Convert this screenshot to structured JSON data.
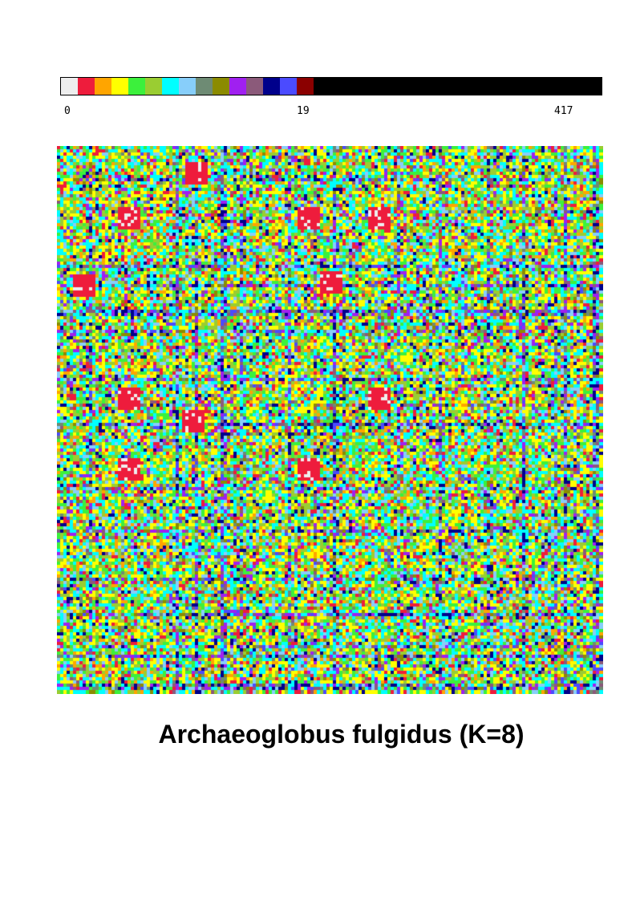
{
  "chart_data": {
    "type": "heatmap",
    "title": "Archaeoglobus fulgidus (K=8)",
    "colorbar": {
      "tick_labels": [
        "0",
        "19",
        "417"
      ],
      "range": [
        0,
        417
      ],
      "colors": [
        "#eeeeee",
        "#ee1c3c",
        "#ffa500",
        "#ffff00",
        "#3cf03c",
        "#9acd32",
        "#00ffff",
        "#87cefa",
        "#6e8b74",
        "#8b8b00",
        "#a020f0",
        "#8b5a7a",
        "#00008b",
        "#4b4bff",
        "#8b0000"
      ],
      "overflow_color": "#000000"
    },
    "grid": false,
    "symmetric": true,
    "highlight_blocks": [
      {
        "row": 22,
        "col": 22,
        "color": "#ee1c3c"
      },
      {
        "row": 22,
        "col": 100,
        "color": "#ee1c3c"
      },
      {
        "row": 42,
        "col": 85,
        "color": "#ee1c3c"
      },
      {
        "row": 8,
        "col": 43,
        "color": "#ee1c3c"
      },
      {
        "row": 78,
        "col": 22,
        "color": "#ee1c3c"
      },
      {
        "row": 78,
        "col": 100,
        "color": "#ee1c3c"
      }
    ]
  }
}
